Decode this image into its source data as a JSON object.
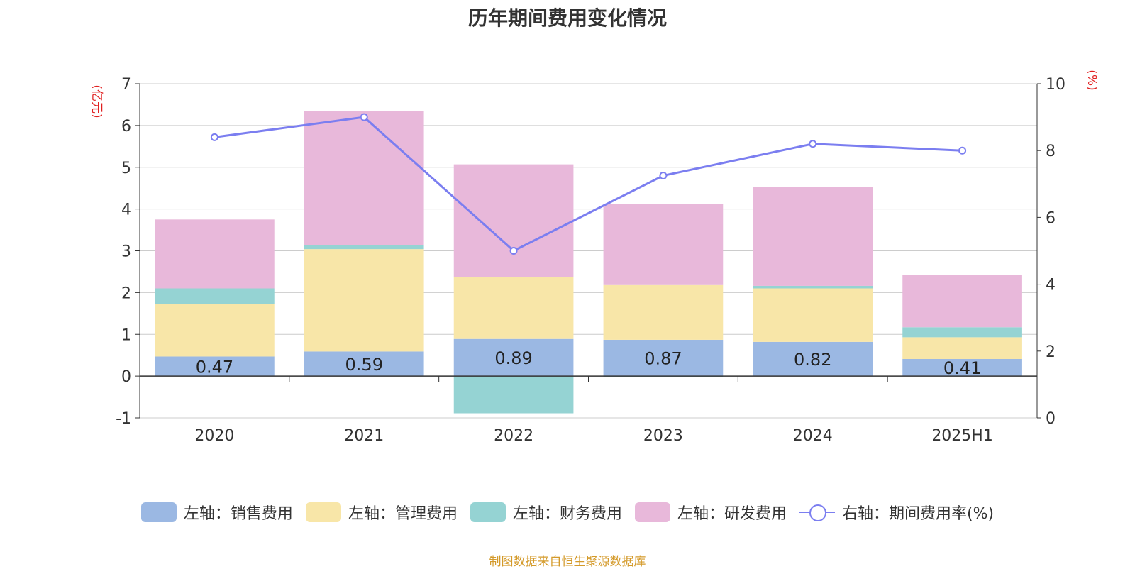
{
  "colors": {
    "sales": "#9bb8e3",
    "admin": "#f8e6a8",
    "finance": "#95d3d3",
    "rnd": "#e8b8da",
    "rate_line": "#7b7ef0",
    "unit_label": "#e02020",
    "source": "#d49a2a"
  },
  "chart_data": {
    "type": "bar",
    "stacked": true,
    "title": "历年期间费用变化情况",
    "categories": [
      "2020",
      "2021",
      "2022",
      "2023",
      "2024",
      "2025H1"
    ],
    "y_left": {
      "unit_label": "(亿元)",
      "range": [
        -1,
        7
      ],
      "ticks": [
        "7",
        "6",
        "5",
        "4",
        "3",
        "2",
        "1",
        "0",
        "-1"
      ]
    },
    "y_right": {
      "unit_label": "(%)",
      "range": [
        0,
        10
      ],
      "ticks": [
        "10",
        "8",
        "6",
        "4",
        "2",
        "0"
      ]
    },
    "series": [
      {
        "name": "左轴：销售费用",
        "key": "sales",
        "axis": "left",
        "values": [
          0.47,
          0.59,
          0.89,
          0.87,
          0.82,
          0.41
        ],
        "data_labels": [
          "0.47",
          "0.59",
          "0.89",
          "0.87",
          "0.82",
          "0.41"
        ]
      },
      {
        "name": "左轴：管理费用",
        "key": "admin",
        "axis": "left",
        "values": [
          1.26,
          2.45,
          1.48,
          1.31,
          1.28,
          0.52
        ]
      },
      {
        "name": "左轴：财务费用",
        "key": "finance",
        "axis": "left",
        "values": [
          0.37,
          0.1,
          -0.89,
          -0.02,
          0.06,
          0.24
        ]
      },
      {
        "name": "左轴：研发费用",
        "key": "rnd",
        "axis": "left",
        "values": [
          1.65,
          3.2,
          2.7,
          1.94,
          2.37,
          1.26
        ]
      },
      {
        "name": "右轴：期间费用率(%)",
        "key": "rate_line",
        "axis": "right",
        "type": "line",
        "values": [
          8.4,
          9.0,
          5.0,
          7.25,
          8.2,
          8.0
        ]
      }
    ],
    "grid": true,
    "legend_position": "bottom"
  },
  "source_note": "制图数据来自恒生聚源数据库"
}
